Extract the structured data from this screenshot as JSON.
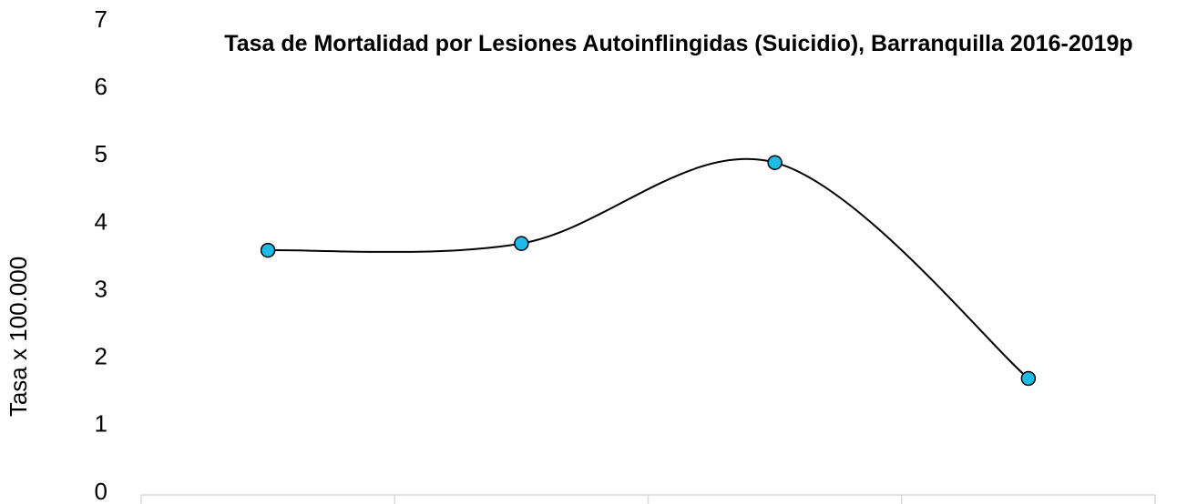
{
  "chart_data": {
    "type": "line",
    "title": "Tasa de Mortalidad por Lesiones Autoinflingidas (Suicidio), Barranquilla 2016-2019p",
    "ylabel": "Tasa x 100.000",
    "categories": [
      null,
      null,
      null,
      null
    ],
    "series": [
      {
        "name": null,
        "color": "#1fbbe8",
        "values": [
          3.6,
          3.7,
          4.9,
          1.7
        ]
      }
    ],
    "ylim": [
      0,
      7
    ],
    "yticks": [
      0,
      1,
      2,
      3,
      4,
      5,
      6,
      7
    ],
    "grid": false,
    "smooth": true
  }
}
